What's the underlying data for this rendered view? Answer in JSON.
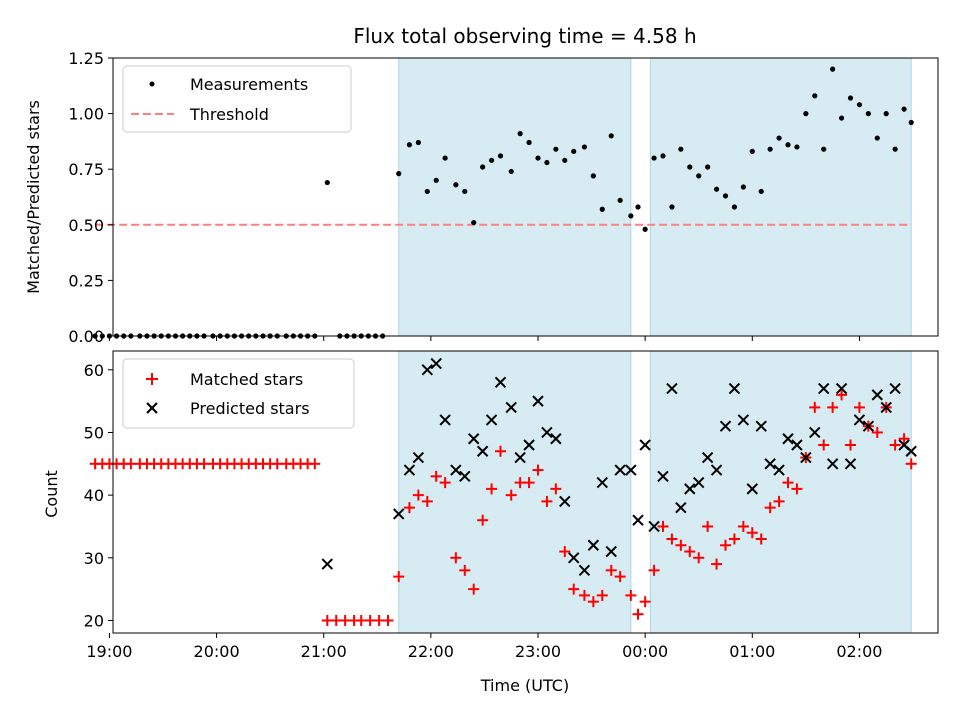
{
  "title": "Flux total observing time = 4.58 h",
  "xlabel": "Time (UTC)",
  "colors": {
    "band": "#add8e6",
    "matched": "#ff0000",
    "predicted": "#000000",
    "threshold": "#ff7f7f",
    "measurement": "#000000"
  },
  "chart_data": [
    {
      "type": "scatter",
      "ylabel": "Matched/Predicted stars",
      "ylim": [
        0,
        1.25
      ],
      "yticks": [
        "0.00",
        "0.25",
        "0.50",
        "0.75",
        "1.00",
        "1.25"
      ],
      "legend": {
        "position": "top-left",
        "entries": [
          "Measurements",
          "Threshold"
        ]
      },
      "threshold": {
        "name": "Threshold",
        "y": 0.5,
        "x_from": "18:52",
        "x_to": "02:29"
      },
      "observing_windows": [
        [
          "21:42",
          "23:52"
        ],
        [
          "00:03",
          "02:29"
        ]
      ],
      "series": [
        {
          "name": "Measurements",
          "points": [
            [
              "18:52",
              0
            ],
            [
              "18:56",
              0
            ],
            [
              "19:00",
              0
            ],
            [
              "19:04",
              0
            ],
            [
              "19:08",
              0
            ],
            [
              "19:12",
              0
            ],
            [
              "19:17",
              0
            ],
            [
              "19:21",
              0
            ],
            [
              "19:25",
              0
            ],
            [
              "19:29",
              0
            ],
            [
              "19:33",
              0
            ],
            [
              "19:37",
              0
            ],
            [
              "19:41",
              0
            ],
            [
              "19:45",
              0
            ],
            [
              "19:49",
              0
            ],
            [
              "19:53",
              0
            ],
            [
              "19:58",
              0
            ],
            [
              "20:02",
              0
            ],
            [
              "20:06",
              0
            ],
            [
              "20:10",
              0
            ],
            [
              "20:14",
              0
            ],
            [
              "20:18",
              0
            ],
            [
              "20:22",
              0
            ],
            [
              "20:26",
              0
            ],
            [
              "20:30",
              0
            ],
            [
              "20:34",
              0
            ],
            [
              "20:39",
              0
            ],
            [
              "20:43",
              0
            ],
            [
              "20:47",
              0
            ],
            [
              "20:51",
              0
            ],
            [
              "20:55",
              0
            ],
            [
              "21:02",
              0.69
            ],
            [
              "21:09",
              0
            ],
            [
              "21:13",
              0
            ],
            [
              "21:17",
              0
            ],
            [
              "21:21",
              0
            ],
            [
              "21:25",
              0
            ],
            [
              "21:29",
              0
            ],
            [
              "21:33",
              0
            ],
            [
              "21:42",
              0.73
            ],
            [
              "21:48",
              0.86
            ],
            [
              "21:53",
              0.87
            ],
            [
              "21:58",
              0.65
            ],
            [
              "22:03",
              0.7
            ],
            [
              "22:08",
              0.8
            ],
            [
              "22:14",
              0.68
            ],
            [
              "22:19",
              0.65
            ],
            [
              "22:24",
              0.51
            ],
            [
              "22:29",
              0.76
            ],
            [
              "22:34",
              0.79
            ],
            [
              "22:39",
              0.81
            ],
            [
              "22:45",
              0.74
            ],
            [
              "22:50",
              0.91
            ],
            [
              "22:55",
              0.87
            ],
            [
              "23:00",
              0.8
            ],
            [
              "23:05",
              0.78
            ],
            [
              "23:10",
              0.84
            ],
            [
              "23:15",
              0.79
            ],
            [
              "23:20",
              0.83
            ],
            [
              "23:26",
              0.85
            ],
            [
              "23:31",
              0.72
            ],
            [
              "23:36",
              0.57
            ],
            [
              "23:41",
              0.9
            ],
            [
              "23:46",
              0.61
            ],
            [
              "23:52",
              0.54
            ],
            [
              "23:56",
              0.58
            ],
            [
              "00:00",
              0.48
            ],
            [
              "00:05",
              0.8
            ],
            [
              "00:10",
              0.81
            ],
            [
              "00:15",
              0.58
            ],
            [
              "00:20",
              0.84
            ],
            [
              "00:25",
              0.76
            ],
            [
              "00:30",
              0.72
            ],
            [
              "00:35",
              0.76
            ],
            [
              "00:40",
              0.66
            ],
            [
              "00:45",
              0.63
            ],
            [
              "00:50",
              0.58
            ],
            [
              "00:55",
              0.67
            ],
            [
              "01:00",
              0.83
            ],
            [
              "01:05",
              0.65
            ],
            [
              "01:10",
              0.84
            ],
            [
              "01:15",
              0.89
            ],
            [
              "01:20",
              0.86
            ],
            [
              "01:25",
              0.85
            ],
            [
              "01:30",
              1.0
            ],
            [
              "01:35",
              1.08
            ],
            [
              "01:40",
              0.84
            ],
            [
              "01:45",
              1.2
            ],
            [
              "01:50",
              0.98
            ],
            [
              "01:55",
              1.07
            ],
            [
              "02:00",
              1.04
            ],
            [
              "02:05",
              1.0
            ],
            [
              "02:10",
              0.89
            ],
            [
              "02:15",
              1.0
            ],
            [
              "02:20",
              0.84
            ],
            [
              "02:25",
              1.02
            ],
            [
              "02:29",
              0.96
            ]
          ]
        }
      ]
    },
    {
      "type": "scatter",
      "ylabel": "Count",
      "ylim": [
        18,
        63
      ],
      "yticks": [
        "20",
        "30",
        "40",
        "50",
        "60"
      ],
      "xticks": [
        "19:00",
        "20:00",
        "21:00",
        "22:00",
        "23:00",
        "00:00",
        "01:00",
        "02:00"
      ],
      "legend": {
        "position": "top-left",
        "entries": [
          "Matched stars",
          "Predicted stars"
        ]
      },
      "observing_windows": [
        [
          "21:42",
          "23:52"
        ],
        [
          "00:03",
          "02:29"
        ]
      ],
      "series": [
        {
          "name": "Matched stars",
          "marker": "plus",
          "points": [
            [
              "18:52",
              45
            ],
            [
              "18:56",
              45
            ],
            [
              "19:00",
              45
            ],
            [
              "19:04",
              45
            ],
            [
              "19:08",
              45
            ],
            [
              "19:12",
              45
            ],
            [
              "19:17",
              45
            ],
            [
              "19:21",
              45
            ],
            [
              "19:25",
              45
            ],
            [
              "19:29",
              45
            ],
            [
              "19:33",
              45
            ],
            [
              "19:37",
              45
            ],
            [
              "19:41",
              45
            ],
            [
              "19:45",
              45
            ],
            [
              "19:49",
              45
            ],
            [
              "19:53",
              45
            ],
            [
              "19:58",
              45
            ],
            [
              "20:02",
              45
            ],
            [
              "20:06",
              45
            ],
            [
              "20:10",
              45
            ],
            [
              "20:14",
              45
            ],
            [
              "20:18",
              45
            ],
            [
              "20:22",
              45
            ],
            [
              "20:26",
              45
            ],
            [
              "20:30",
              45
            ],
            [
              "20:34",
              45
            ],
            [
              "20:39",
              45
            ],
            [
              "20:43",
              45
            ],
            [
              "20:47",
              45
            ],
            [
              "20:51",
              45
            ],
            [
              "20:55",
              45
            ],
            [
              "21:02",
              20
            ],
            [
              "21:07",
              20
            ],
            [
              "21:12",
              20
            ],
            [
              "21:17",
              20
            ],
            [
              "21:21",
              20
            ],
            [
              "21:26",
              20
            ],
            [
              "21:31",
              20
            ],
            [
              "21:36",
              20
            ],
            [
              "21:42",
              27
            ],
            [
              "21:48",
              38
            ],
            [
              "21:53",
              40
            ],
            [
              "21:58",
              39
            ],
            [
              "22:03",
              43
            ],
            [
              "22:08",
              42
            ],
            [
              "22:14",
              30
            ],
            [
              "22:19",
              28
            ],
            [
              "22:24",
              25
            ],
            [
              "22:29",
              36
            ],
            [
              "22:34",
              41
            ],
            [
              "22:39",
              47
            ],
            [
              "22:45",
              40
            ],
            [
              "22:50",
              42
            ],
            [
              "22:55",
              42
            ],
            [
              "23:00",
              44
            ],
            [
              "23:05",
              39
            ],
            [
              "23:10",
              41
            ],
            [
              "23:15",
              31
            ],
            [
              "23:20",
              25
            ],
            [
              "23:26",
              24
            ],
            [
              "23:31",
              23
            ],
            [
              "23:36",
              24
            ],
            [
              "23:41",
              28
            ],
            [
              "23:46",
              27
            ],
            [
              "23:52",
              24
            ],
            [
              "23:56",
              21
            ],
            [
              "00:00",
              23
            ],
            [
              "00:05",
              28
            ],
            [
              "00:10",
              35
            ],
            [
              "00:15",
              33
            ],
            [
              "00:20",
              32
            ],
            [
              "00:25",
              31
            ],
            [
              "00:30",
              30
            ],
            [
              "00:35",
              35
            ],
            [
              "00:40",
              29
            ],
            [
              "00:45",
              32
            ],
            [
              "00:50",
              33
            ],
            [
              "00:55",
              35
            ],
            [
              "01:00",
              34
            ],
            [
              "01:05",
              33
            ],
            [
              "01:10",
              38
            ],
            [
              "01:15",
              39
            ],
            [
              "01:20",
              42
            ],
            [
              "01:25",
              41
            ],
            [
              "01:30",
              46
            ],
            [
              "01:35",
              54
            ],
            [
              "01:40",
              48
            ],
            [
              "01:45",
              54
            ],
            [
              "01:50",
              56
            ],
            [
              "01:55",
              48
            ],
            [
              "02:00",
              54
            ],
            [
              "02:05",
              51
            ],
            [
              "02:10",
              50
            ],
            [
              "02:15",
              54
            ],
            [
              "02:20",
              48
            ],
            [
              "02:25",
              49
            ],
            [
              "02:29",
              45
            ]
          ]
        },
        {
          "name": "Predicted stars",
          "marker": "x",
          "points": [
            [
              "21:02",
              29
            ],
            [
              "21:42",
              37
            ],
            [
              "21:48",
              44
            ],
            [
              "21:53",
              46
            ],
            [
              "21:58",
              60
            ],
            [
              "22:03",
              61
            ],
            [
              "22:08",
              52
            ],
            [
              "22:14",
              44
            ],
            [
              "22:19",
              43
            ],
            [
              "22:24",
              49
            ],
            [
              "22:29",
              47
            ],
            [
              "22:34",
              52
            ],
            [
              "22:39",
              58
            ],
            [
              "22:45",
              54
            ],
            [
              "22:50",
              46
            ],
            [
              "22:55",
              48
            ],
            [
              "23:00",
              55
            ],
            [
              "23:05",
              50
            ],
            [
              "23:10",
              49
            ],
            [
              "23:15",
              39
            ],
            [
              "23:20",
              30
            ],
            [
              "23:26",
              28
            ],
            [
              "23:31",
              32
            ],
            [
              "23:36",
              42
            ],
            [
              "23:41",
              31
            ],
            [
              "23:46",
              44
            ],
            [
              "23:52",
              44
            ],
            [
              "23:56",
              36
            ],
            [
              "00:00",
              48
            ],
            [
              "00:05",
              35
            ],
            [
              "00:10",
              43
            ],
            [
              "00:15",
              57
            ],
            [
              "00:20",
              38
            ],
            [
              "00:25",
              41
            ],
            [
              "00:30",
              42
            ],
            [
              "00:35",
              46
            ],
            [
              "00:40",
              44
            ],
            [
              "00:45",
              51
            ],
            [
              "00:50",
              57
            ],
            [
              "00:55",
              52
            ],
            [
              "01:00",
              41
            ],
            [
              "01:05",
              51
            ],
            [
              "01:10",
              45
            ],
            [
              "01:15",
              44
            ],
            [
              "01:20",
              49
            ],
            [
              "01:25",
              48
            ],
            [
              "01:30",
              46
            ],
            [
              "01:35",
              50
            ],
            [
              "01:40",
              57
            ],
            [
              "01:45",
              45
            ],
            [
              "01:50",
              57
            ],
            [
              "01:55",
              45
            ],
            [
              "02:00",
              52
            ],
            [
              "02:05",
              51
            ],
            [
              "02:10",
              56
            ],
            [
              "02:15",
              54
            ],
            [
              "02:20",
              57
            ],
            [
              "02:25",
              48
            ],
            [
              "02:29",
              47
            ]
          ]
        }
      ]
    }
  ]
}
